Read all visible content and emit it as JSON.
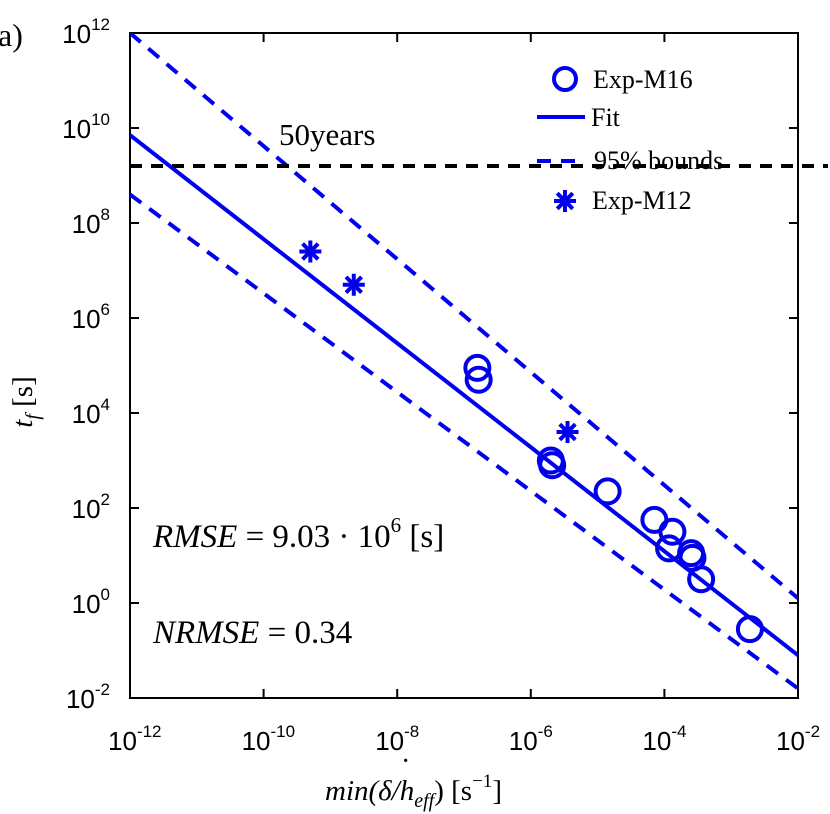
{
  "panel_label": "a)",
  "colors": {
    "series": "#0000ee",
    "reference": "#000000",
    "axis": "#000000"
  },
  "chart_data": {
    "type": "scatter",
    "xscale": "log",
    "yscale": "log",
    "xlim_exp": [
      -12,
      -2
    ],
    "ylim_exp": [
      -2,
      12
    ],
    "x_ticks": [
      {
        "base": "10",
        "exp": "-12",
        "value": -12
      },
      {
        "base": "10",
        "exp": "-10",
        "value": -10
      },
      {
        "base": "10",
        "exp": "-8",
        "value": -8
      },
      {
        "base": "10",
        "exp": "-6",
        "value": -6
      },
      {
        "base": "10",
        "exp": "-4",
        "value": -4
      },
      {
        "base": "10",
        "exp": "-2",
        "value": -2
      }
    ],
    "y_ticks": [
      {
        "base": "10",
        "exp": "12",
        "value": 12
      },
      {
        "base": "10",
        "exp": "10",
        "value": 10
      },
      {
        "base": "10",
        "exp": "8",
        "value": 8
      },
      {
        "base": "10",
        "exp": "6",
        "value": 6
      },
      {
        "base": "10",
        "exp": "4",
        "value": 4
      },
      {
        "base": "10",
        "exp": "2",
        "value": 2
      },
      {
        "base": "10",
        "exp": "0",
        "value": 0
      },
      {
        "base": "10",
        "exp": "-2",
        "value": -2
      }
    ],
    "xlabel": {
      "pre": "min(",
      "delta": "δ",
      "mid": "/h",
      "sub": "eff",
      "post": ")",
      "unit": "[s",
      "unit_exp": "−1",
      "unit_end": "]"
    },
    "ylabel": {
      "var": "t",
      "sub": "f",
      "unit": "[s]"
    },
    "fit": {
      "name": "Fit",
      "log_x": [
        -12,
        -2
      ],
      "log_y": [
        9.85,
        -1.1
      ]
    },
    "bounds": {
      "name": "95% bounds",
      "upper": {
        "log_x": [
          -12,
          -2
        ],
        "log_y": [
          12.0,
          0.1
        ]
      },
      "lower": {
        "log_x": [
          -12,
          -2
        ],
        "log_y": [
          8.6,
          -1.8
        ]
      }
    },
    "reference_line": {
      "label": "50years",
      "log_y": 9.2
    },
    "series": [
      {
        "name": "Exp-M16",
        "marker": "circle",
        "points": [
          {
            "log_x": -6.8,
            "log_y": 4.95
          },
          {
            "log_x": -6.78,
            "log_y": 4.7
          },
          {
            "log_x": -5.7,
            "log_y": 3.0
          },
          {
            "log_x": -5.68,
            "log_y": 2.9
          },
          {
            "log_x": -4.85,
            "log_y": 2.35
          },
          {
            "log_x": -4.15,
            "log_y": 1.75
          },
          {
            "log_x": -3.93,
            "log_y": 1.15
          },
          {
            "log_x": -3.88,
            "log_y": 1.5
          },
          {
            "log_x": -3.6,
            "log_y": 1.05
          },
          {
            "log_x": -3.58,
            "log_y": 0.95
          },
          {
            "log_x": -3.45,
            "log_y": 0.5
          },
          {
            "log_x": -2.72,
            "log_y": -0.55
          }
        ]
      },
      {
        "name": "Exp-M12",
        "marker": "asterisk",
        "points": [
          {
            "log_x": -9.3,
            "log_y": 7.4
          },
          {
            "log_x": -8.65,
            "log_y": 6.7
          },
          {
            "log_x": -5.45,
            "log_y": 3.6
          }
        ]
      }
    ],
    "annotations": [
      {
        "id": "rmse",
        "lhs": "RMSE",
        "eq": " = 9.03 · 10",
        "exp": "6",
        "unit": " [s]"
      },
      {
        "id": "nrmse",
        "lhs": "NRMSE",
        "eq": " = 0.34"
      }
    ],
    "legend": {
      "position": "top-right",
      "entries": [
        {
          "label": "Exp-M16",
          "marker": "circle"
        },
        {
          "label": "Fit",
          "marker": "solid-line"
        },
        {
          "label": "95% bounds",
          "marker": "dashed-line"
        },
        {
          "label": "Exp-M12",
          "marker": "asterisk"
        }
      ]
    }
  }
}
